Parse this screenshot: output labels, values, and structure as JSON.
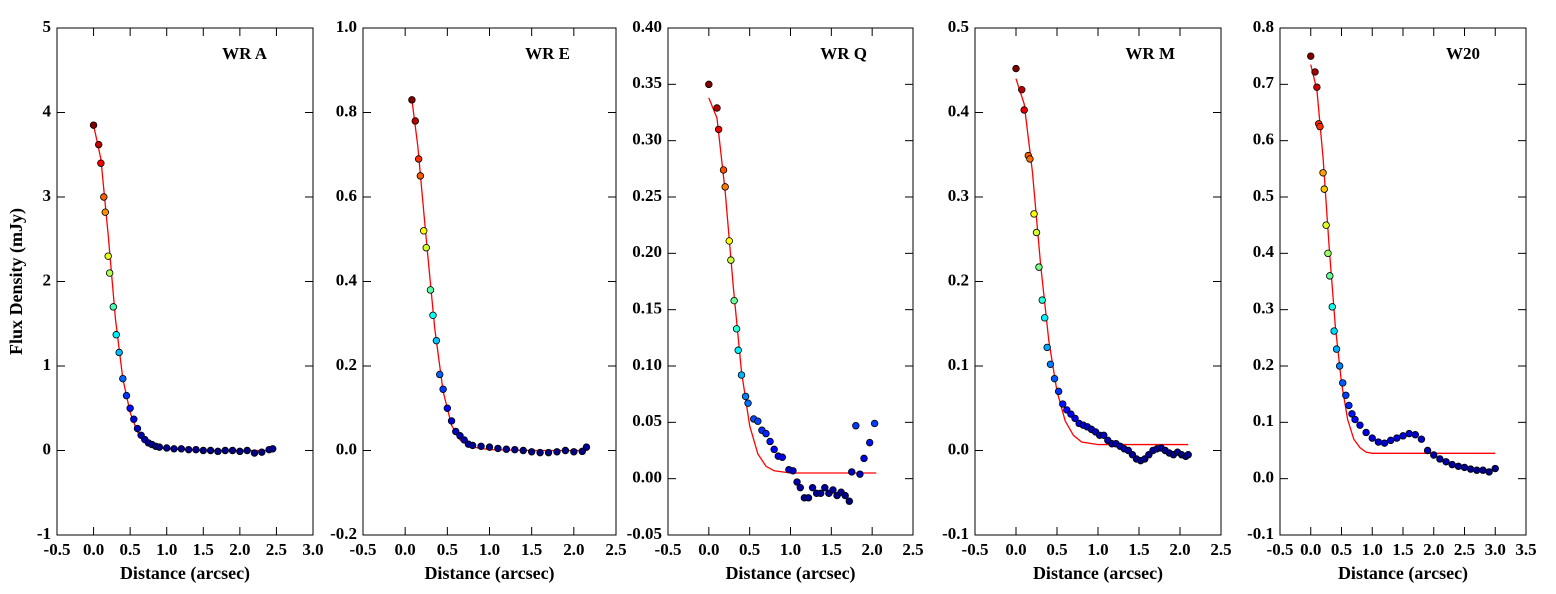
{
  "chart_data": [
    {
      "type": "scatter",
      "annotation": "WR A",
      "xlabel": "Distance (arcsec)",
      "ylabel": "Flux Density (mJy)",
      "xlim": [
        -0.5,
        3.0
      ],
      "xticks": [
        -0.5,
        {
          "value": 0,
          "label": "0.0"
        },
        0.5,
        {
          "value": 1,
          "label": "1.0"
        },
        1.5,
        {
          "value": 2,
          "label": "2.0"
        },
        2.5,
        {
          "value": 3,
          "label": "3.0"
        }
      ],
      "ylim": [
        -1,
        5
      ],
      "yticks": [
        -1,
        0,
        1,
        2,
        3,
        4,
        5
      ],
      "scatter": {
        "cmap": "jet",
        "edgecolor": "#000000",
        "x": [
          0.0,
          0.07,
          0.1,
          0.14,
          0.16,
          0.2,
          0.22,
          0.27,
          0.31,
          0.35,
          0.4,
          0.45,
          0.5,
          0.55,
          0.6,
          0.65,
          0.7,
          0.75,
          0.8,
          0.85,
          0.9,
          1.0,
          1.1,
          1.2,
          1.3,
          1.4,
          1.5,
          1.6,
          1.7,
          1.8,
          1.9,
          2.0,
          2.1,
          2.2,
          2.3,
          2.4,
          2.45
        ],
        "values": [
          3.85,
          3.62,
          3.4,
          3.0,
          2.82,
          2.3,
          2.1,
          1.7,
          1.37,
          1.16,
          0.85,
          0.65,
          0.5,
          0.37,
          0.26,
          0.18,
          0.13,
          0.09,
          0.07,
          0.05,
          0.04,
          0.03,
          0.02,
          0.02,
          0.01,
          0.01,
          0.0,
          0.0,
          -0.01,
          0.0,
          0.0,
          -0.01,
          0.0,
          -0.03,
          -0.02,
          0.01,
          0.02
        ]
      },
      "fit": {
        "color": "#ff0000",
        "x": [
          0,
          0.1,
          0.2,
          0.3,
          0.4,
          0.5,
          0.6,
          0.7,
          0.8,
          1.0,
          1.5,
          2.45
        ],
        "values": [
          3.85,
          3.45,
          2.55,
          1.55,
          0.85,
          0.45,
          0.22,
          0.1,
          0.05,
          0.02,
          0.0,
          0.0
        ]
      }
    },
    {
      "type": "scatter",
      "annotation": "WR E",
      "xlabel": "Distance (arcsec)",
      "xlim": [
        -0.5,
        2.5
      ],
      "xticks": [
        -0.5,
        {
          "value": 0,
          "label": "0.0"
        },
        0.5,
        {
          "value": 1,
          "label": "1.0"
        },
        1.5,
        {
          "value": 2,
          "label": "2.0"
        },
        2.5
      ],
      "ylim": [
        -0.2,
        1.0
      ],
      "yticks": [
        -0.2,
        {
          "value": 0,
          "label": "0.0"
        },
        0.2,
        0.4,
        0.6,
        0.8,
        {
          "value": 1,
          "label": "1.0"
        }
      ],
      "scatter": {
        "cmap": "jet",
        "edgecolor": "#000000",
        "x": [
          0.08,
          0.12,
          0.16,
          0.18,
          0.22,
          0.25,
          0.3,
          0.33,
          0.37,
          0.41,
          0.45,
          0.5,
          0.55,
          0.6,
          0.65,
          0.7,
          0.75,
          0.8,
          0.9,
          1.0,
          1.1,
          1.2,
          1.3,
          1.4,
          1.5,
          1.6,
          1.7,
          1.8,
          1.9,
          2.0,
          2.1,
          2.15
        ],
        "values": [
          0.83,
          0.78,
          0.69,
          0.65,
          0.52,
          0.48,
          0.38,
          0.32,
          0.26,
          0.18,
          0.145,
          0.1,
          0.07,
          0.045,
          0.035,
          0.025,
          0.015,
          0.012,
          0.01,
          0.008,
          0.005,
          0.003,
          0.002,
          0.0,
          -0.003,
          -0.005,
          -0.005,
          -0.003,
          0.0,
          -0.003,
          -0.002,
          0.008
        ]
      },
      "fit": {
        "color": "#ff0000",
        "x": [
          0.08,
          0.15,
          0.25,
          0.35,
          0.45,
          0.55,
          0.65,
          0.8,
          1.0,
          1.5,
          2.15
        ],
        "values": [
          0.83,
          0.72,
          0.5,
          0.29,
          0.14,
          0.06,
          0.025,
          0.008,
          0.002,
          0.0,
          0.0
        ]
      }
    },
    {
      "type": "scatter",
      "annotation": "WR Q",
      "xlabel": "Distance (arcsec)",
      "xlim": [
        -0.5,
        2.5
      ],
      "xticks": [
        -0.5,
        {
          "value": 0,
          "label": "0.0"
        },
        0.5,
        {
          "value": 1,
          "label": "1.0"
        },
        1.5,
        {
          "value": 2,
          "label": "2.0"
        },
        2.5
      ],
      "ylim": [
        -0.05,
        0.4
      ],
      "yticks": [
        -0.05,
        {
          "value": 0,
          "label": "0.00"
        },
        0.05,
        {
          "value": 0.1,
          "label": "0.10"
        },
        0.15,
        {
          "value": 0.2,
          "label": "0.20"
        },
        0.25,
        {
          "value": 0.3,
          "label": "0.30"
        },
        0.35,
        {
          "value": 0.4,
          "label": "0.40"
        }
      ],
      "scatter": {
        "cmap": "jet",
        "edgecolor": "#000000",
        "x": [
          0.0,
          0.1,
          0.12,
          0.18,
          0.2,
          0.25,
          0.27,
          0.31,
          0.34,
          0.36,
          0.4,
          0.45,
          0.48,
          0.55,
          0.6,
          0.65,
          0.7,
          0.75,
          0.8,
          0.85,
          0.9,
          0.98,
          1.03,
          1.08,
          1.12,
          1.17,
          1.22,
          1.27,
          1.32,
          1.37,
          1.42,
          1.47,
          1.52,
          1.57,
          1.62,
          1.67,
          1.72,
          1.75,
          1.8,
          1.85,
          1.9,
          1.97,
          2.03
        ],
        "values": [
          0.35,
          0.329,
          0.31,
          0.274,
          0.259,
          0.211,
          0.194,
          0.158,
          0.133,
          0.114,
          0.092,
          0.073,
          0.067,
          0.053,
          0.051,
          0.043,
          0.04,
          0.033,
          0.026,
          0.02,
          0.019,
          0.008,
          0.007,
          -0.003,
          -0.008,
          -0.017,
          -0.017,
          -0.008,
          -0.013,
          -0.013,
          -0.008,
          -0.013,
          -0.01,
          -0.015,
          -0.012,
          -0.015,
          -0.02,
          0.006,
          0.047,
          0.004,
          0.018,
          0.032,
          0.049
        ]
      },
      "fit": {
        "color": "#ff0000",
        "x": [
          0,
          0.1,
          0.2,
          0.3,
          0.4,
          0.5,
          0.6,
          0.7,
          0.8,
          1.0,
          2.05
        ],
        "values": [
          0.338,
          0.32,
          0.255,
          0.17,
          0.095,
          0.047,
          0.022,
          0.011,
          0.007,
          0.005,
          0.005
        ]
      }
    },
    {
      "type": "scatter",
      "annotation": "WR M",
      "xlabel": "Distance (arcsec)",
      "xlim": [
        -0.5,
        2.5
      ],
      "xticks": [
        -0.5,
        {
          "value": 0,
          "label": "0.0"
        },
        0.5,
        {
          "value": 1,
          "label": "1.0"
        },
        1.5,
        {
          "value": 2,
          "label": "2.0"
        },
        2.5
      ],
      "ylim": [
        -0.1,
        0.5
      ],
      "yticks": [
        -0.1,
        {
          "value": 0,
          "label": "0.0"
        },
        0.1,
        0.2,
        0.3,
        0.4,
        0.5
      ],
      "scatter": {
        "cmap": "jet",
        "edgecolor": "#000000",
        "x": [
          0.0,
          0.07,
          0.1,
          0.15,
          0.17,
          0.22,
          0.25,
          0.28,
          0.32,
          0.35,
          0.38,
          0.42,
          0.47,
          0.52,
          0.57,
          0.62,
          0.67,
          0.72,
          0.77,
          0.82,
          0.87,
          0.92,
          0.97,
          1.02,
          1.07,
          1.12,
          1.17,
          1.22,
          1.27,
          1.32,
          1.37,
          1.42,
          1.47,
          1.52,
          1.57,
          1.62,
          1.67,
          1.72,
          1.77,
          1.82,
          1.87,
          1.92,
          1.97,
          2.02,
          2.07,
          2.1
        ],
        "values": [
          0.452,
          0.427,
          0.403,
          0.349,
          0.345,
          0.28,
          0.258,
          0.217,
          0.178,
          0.157,
          0.122,
          0.102,
          0.085,
          0.07,
          0.055,
          0.048,
          0.043,
          0.038,
          0.032,
          0.03,
          0.028,
          0.025,
          0.022,
          0.018,
          0.018,
          0.012,
          0.008,
          0.008,
          0.005,
          0.002,
          0.0,
          -0.005,
          -0.01,
          -0.012,
          -0.01,
          -0.005,
          0.0,
          0.002,
          0.003,
          0.0,
          -0.003,
          -0.005,
          -0.002,
          -0.005,
          -0.007,
          -0.005
        ]
      },
      "fit": {
        "color": "#ff0000",
        "x": [
          0,
          0.1,
          0.2,
          0.3,
          0.4,
          0.5,
          0.6,
          0.7,
          0.8,
          1.0,
          2.1
        ],
        "values": [
          0.44,
          0.41,
          0.33,
          0.22,
          0.13,
          0.07,
          0.035,
          0.018,
          0.01,
          0.007,
          0.007
        ]
      }
    },
    {
      "type": "scatter",
      "annotation": "W20",
      "xlabel": "Distance (arcsec)",
      "xlim": [
        -0.5,
        3.5
      ],
      "xticks": [
        -0.5,
        {
          "value": 0,
          "label": "0.0"
        },
        0.5,
        {
          "value": 1,
          "label": "1.0"
        },
        1.5,
        {
          "value": 2,
          "label": "2.0"
        },
        2.5,
        {
          "value": 3,
          "label": "3.0"
        },
        3.5
      ],
      "ylim": [
        -0.1,
        0.8
      ],
      "yticks": [
        -0.1,
        {
          "value": 0,
          "label": "0.0"
        },
        0.1,
        0.2,
        0.3,
        0.4,
        0.5,
        0.6,
        0.7,
        0.8
      ],
      "scatter": {
        "cmap": "jet",
        "edgecolor": "#000000",
        "x": [
          0.0,
          0.07,
          0.1,
          0.13,
          0.15,
          0.2,
          0.22,
          0.25,
          0.28,
          0.31,
          0.35,
          0.38,
          0.42,
          0.47,
          0.52,
          0.57,
          0.62,
          0.67,
          0.72,
          0.8,
          0.9,
          1.0,
          1.1,
          1.2,
          1.3,
          1.4,
          1.5,
          1.6,
          1.7,
          1.8,
          1.9,
          2.0,
          2.1,
          2.2,
          2.3,
          2.4,
          2.5,
          2.6,
          2.7,
          2.8,
          2.9,
          3.0
        ],
        "values": [
          0.75,
          0.722,
          0.695,
          0.63,
          0.625,
          0.543,
          0.514,
          0.45,
          0.4,
          0.36,
          0.305,
          0.262,
          0.23,
          0.2,
          0.17,
          0.148,
          0.13,
          0.115,
          0.105,
          0.095,
          0.082,
          0.072,
          0.065,
          0.063,
          0.068,
          0.072,
          0.076,
          0.08,
          0.078,
          0.07,
          0.05,
          0.042,
          0.035,
          0.03,
          0.025,
          0.022,
          0.02,
          0.017,
          0.015,
          0.015,
          0.012,
          0.018
        ]
      },
      "fit": {
        "color": "#ff0000",
        "x": [
          0,
          0.1,
          0.2,
          0.3,
          0.4,
          0.5,
          0.6,
          0.7,
          0.8,
          0.9,
          1.0,
          3.0
        ],
        "values": [
          0.735,
          0.69,
          0.57,
          0.41,
          0.27,
          0.17,
          0.105,
          0.07,
          0.055,
          0.047,
          0.045,
          0.045
        ]
      }
    }
  ]
}
